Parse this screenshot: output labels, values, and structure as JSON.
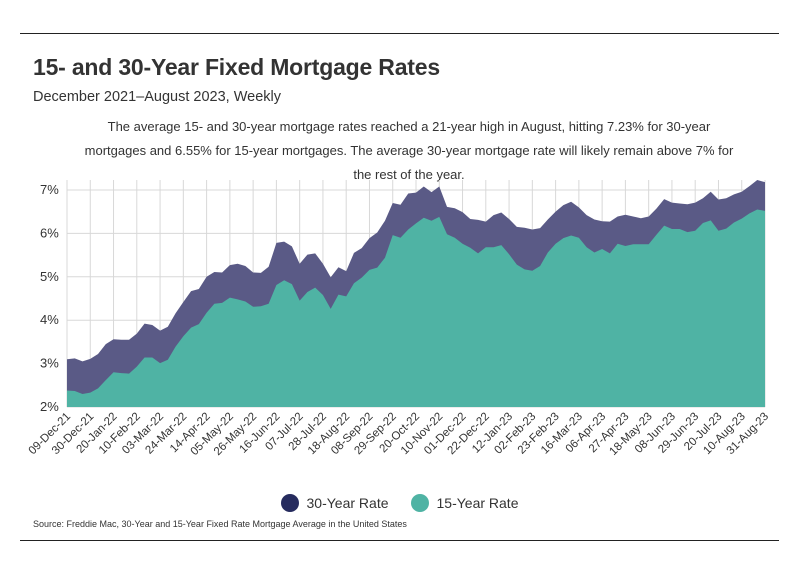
{
  "header": {
    "title": "15- and 30-Year Fixed Mortgage Rates",
    "subtitle": "December 2021–August 2023, Weekly",
    "note": "The average 15- and 30-year mortgage rates reached a 21-year high in August, hitting 7.23% for 30-year mortgages and 6.55% for 15-year mortgages. The average 30-year mortgage rate will likely remain above 7% for the rest of the year."
  },
  "legend": {
    "series30": "30-Year Rate",
    "series15": "15-Year Rate"
  },
  "footer": {
    "source": "Source:  Freddie Mac, 30-Year  and 15-Year Fixed Rate Mortgage Average in the United States"
  },
  "colors": {
    "series30": "#5a5a86",
    "series15": "#4fb3a4",
    "legend30": "#262b5e",
    "grid": "#d8d8d8"
  },
  "chart_data": {
    "type": "area",
    "stacked": false,
    "ylim": [
      2,
      7.23
    ],
    "yticks": [
      2,
      3,
      4,
      5,
      6,
      7
    ],
    "ytick_labels": [
      "2%",
      "3%",
      "4%",
      "5%",
      "6%",
      "7%"
    ],
    "grid": true,
    "legend_position": "bottom",
    "x_labels": [
      "09-Dec-21",
      "30-Dec-21",
      "20-Jan-22",
      "10-Feb-22",
      "03-Mar-22",
      "24-Mar-22",
      "14-Apr-22",
      "05-May-22",
      "26-May-22",
      "16-Jun-22",
      "07-Jul-22",
      "28-Jul-22",
      "18-Aug-22",
      "08-Sep-22",
      "29-Sep-22",
      "20-Oct-22",
      "10-Nov-22",
      "01-Dec-22",
      "22-Dec-22",
      "12-Jan-23",
      "02-Feb-23",
      "23-Feb-23",
      "16-Mar-23",
      "06-Apr-23",
      "27-Apr-23",
      "18-May-23",
      "08-Jun-23",
      "29-Jun-23",
      "20-Jul-23",
      "10-Aug-23",
      "31-Aug-23"
    ],
    "x": [
      "09-Dec-21",
      "16-Dec-21",
      "23-Dec-21",
      "30-Dec-21",
      "06-Jan-22",
      "13-Jan-22",
      "20-Jan-22",
      "27-Jan-22",
      "03-Feb-22",
      "10-Feb-22",
      "17-Feb-22",
      "24-Feb-22",
      "03-Mar-22",
      "10-Mar-22",
      "17-Mar-22",
      "24-Mar-22",
      "31-Mar-22",
      "07-Apr-22",
      "14-Apr-22",
      "21-Apr-22",
      "28-Apr-22",
      "05-May-22",
      "12-May-22",
      "19-May-22",
      "26-May-22",
      "02-Jun-22",
      "09-Jun-22",
      "16-Jun-22",
      "23-Jun-22",
      "30-Jun-22",
      "07-Jul-22",
      "14-Jul-22",
      "21-Jul-22",
      "28-Jul-22",
      "04-Aug-22",
      "11-Aug-22",
      "18-Aug-22",
      "25-Aug-22",
      "01-Sep-22",
      "08-Sep-22",
      "15-Sep-22",
      "22-Sep-22",
      "29-Sep-22",
      "06-Oct-22",
      "13-Oct-22",
      "20-Oct-22",
      "27-Oct-22",
      "03-Nov-22",
      "10-Nov-22",
      "17-Nov-22",
      "24-Nov-22",
      "01-Dec-22",
      "08-Dec-22",
      "15-Dec-22",
      "22-Dec-22",
      "29-Dec-22",
      "05-Jan-23",
      "12-Jan-23",
      "19-Jan-23",
      "26-Jan-23",
      "02-Feb-23",
      "09-Feb-23",
      "16-Feb-23",
      "23-Feb-23",
      "02-Mar-23",
      "09-Mar-23",
      "16-Mar-23",
      "23-Mar-23",
      "30-Mar-23",
      "06-Apr-23",
      "13-Apr-23",
      "20-Apr-23",
      "27-Apr-23",
      "04-May-23",
      "11-May-23",
      "18-May-23",
      "25-May-23",
      "01-Jun-23",
      "08-Jun-23",
      "15-Jun-23",
      "22-Jun-23",
      "29-Jun-23",
      "06-Jul-23",
      "13-Jul-23",
      "20-Jul-23",
      "27-Jul-23",
      "03-Aug-23",
      "10-Aug-23",
      "17-Aug-23",
      "24-Aug-23",
      "31-Aug-23"
    ],
    "series": [
      {
        "name": "30-Year Rate",
        "values": [
          3.1,
          3.12,
          3.05,
          3.11,
          3.22,
          3.45,
          3.56,
          3.55,
          3.55,
          3.69,
          3.92,
          3.89,
          3.76,
          3.85,
          4.16,
          4.42,
          4.67,
          4.72,
          5.0,
          5.11,
          5.1,
          5.27,
          5.3,
          5.25,
          5.1,
          5.09,
          5.23,
          5.78,
          5.81,
          5.7,
          5.3,
          5.51,
          5.54,
          5.3,
          4.99,
          5.22,
          5.13,
          5.55,
          5.66,
          5.89,
          6.02,
          6.29,
          6.7,
          6.66,
          6.92,
          6.94,
          7.08,
          6.95,
          7.08,
          6.61,
          6.58,
          6.49,
          6.33,
          6.31,
          6.27,
          6.42,
          6.48,
          6.33,
          6.15,
          6.13,
          6.09,
          6.12,
          6.32,
          6.5,
          6.65,
          6.73,
          6.6,
          6.42,
          6.32,
          6.28,
          6.27,
          6.39,
          6.43,
          6.39,
          6.35,
          6.39,
          6.57,
          6.79,
          6.71,
          6.69,
          6.67,
          6.71,
          6.81,
          6.96,
          6.78,
          6.81,
          6.9,
          6.96,
          7.09,
          7.23,
          7.18
        ]
      },
      {
        "name": "15-Year Rate",
        "values": [
          2.38,
          2.37,
          2.3,
          2.33,
          2.43,
          2.62,
          2.8,
          2.78,
          2.77,
          2.93,
          3.14,
          3.14,
          3.01,
          3.09,
          3.39,
          3.63,
          3.83,
          3.91,
          4.17,
          4.38,
          4.4,
          4.52,
          4.48,
          4.43,
          4.31,
          4.32,
          4.38,
          4.81,
          4.92,
          4.83,
          4.45,
          4.65,
          4.75,
          4.58,
          4.26,
          4.59,
          4.55,
          4.85,
          4.98,
          5.16,
          5.21,
          5.44,
          5.96,
          5.9,
          6.09,
          6.23,
          6.36,
          6.29,
          6.38,
          5.98,
          5.9,
          5.76,
          5.67,
          5.54,
          5.68,
          5.68,
          5.73,
          5.52,
          5.28,
          5.17,
          5.14,
          5.25,
          5.56,
          5.76,
          5.89,
          5.95,
          5.9,
          5.68,
          5.56,
          5.64,
          5.54,
          5.76,
          5.71,
          5.75,
          5.75,
          5.75,
          5.97,
          6.18,
          6.1,
          6.1,
          6.03,
          6.06,
          6.24,
          6.3,
          6.06,
          6.11,
          6.25,
          6.34,
          6.46,
          6.55,
          6.52
        ]
      }
    ]
  }
}
